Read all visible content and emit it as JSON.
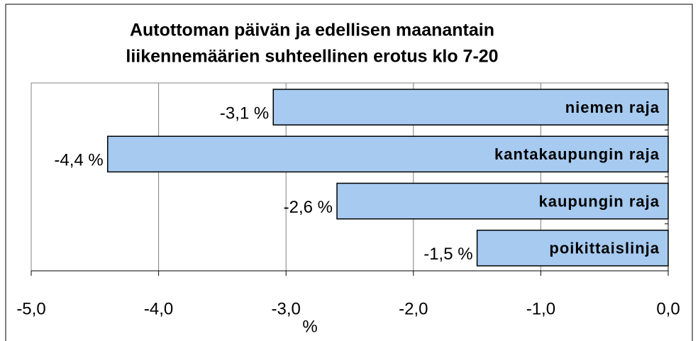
{
  "chart_data": {
    "type": "barh",
    "title": [
      "Autottoman päivän ja edellisen maanantain",
      "liikennemäärien suhteellinen erotus klo 7-20"
    ],
    "categories": [
      "niemen raja",
      "kantakaupungin raja",
      "kaupungin raja",
      "poikittaislinja"
    ],
    "values": [
      -3.1,
      -4.4,
      -2.6,
      -1.5
    ],
    "value_labels": [
      "-3,1 %",
      "-4,4 %",
      "-2,6 %",
      "-1,5 %"
    ],
    "color": "#a6caf0",
    "xlim": [
      -5,
      0
    ],
    "xticks": [
      {
        "value": -5,
        "label": "-5,0"
      },
      {
        "value": -4,
        "label": "-4,0"
      },
      {
        "value": -3,
        "label": "-3,0"
      },
      {
        "value": -2,
        "label": "-2,0"
      },
      {
        "value": -1,
        "label": "-1,0"
      },
      {
        "value": 0,
        "label": "0,0"
      }
    ],
    "xlabel": "%",
    "grid": true
  }
}
